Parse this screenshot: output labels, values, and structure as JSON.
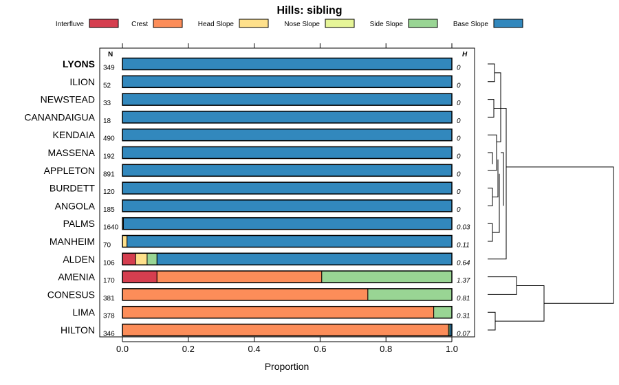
{
  "chart_data": {
    "type": "bar",
    "orientation": "horizontal",
    "stacked": true,
    "title": "Hills: sibling",
    "xlabel": "Proportion",
    "ylabel": "",
    "xlim": [
      0,
      1
    ],
    "xticks": [
      "0.0",
      "0.2",
      "0.4",
      "0.6",
      "0.8",
      "1.0"
    ],
    "xtick_values": [
      0,
      0.2,
      0.4,
      0.6,
      0.8,
      1.0
    ],
    "n_header": "N",
    "h_header": "H",
    "legend_placement": "top",
    "highlighted_category": "LYONS",
    "legend": [
      {
        "name": "Interfluve",
        "color": "#D53E4F"
      },
      {
        "name": "Crest",
        "color": "#FC8D59"
      },
      {
        "name": "Head Slope",
        "color": "#FEE08B"
      },
      {
        "name": "Nose Slope",
        "color": "#E6F598"
      },
      {
        "name": "Side Slope",
        "color": "#99D594"
      },
      {
        "name": "Base Slope",
        "color": "#3288BD"
      }
    ],
    "categories": [
      "LYONS",
      "ILION",
      "NEWSTEAD",
      "CANANDAIGUA",
      "KENDAIA",
      "MASSENA",
      "APPLETON",
      "BURDETT",
      "ANGOLA",
      "PALMS",
      "MANHEIM",
      "ALDEN",
      "AMENIA",
      "CONESUS",
      "LIMA",
      "HILTON"
    ],
    "n": [
      "349",
      "52",
      "33",
      "18",
      "490",
      "192",
      "891",
      "120",
      "185",
      "1640",
      "70",
      "106",
      "170",
      "381",
      "378",
      "346"
    ],
    "h": [
      "0",
      "0",
      "0",
      "0",
      "0",
      "0",
      "0",
      "0",
      "0",
      "0.03",
      "0.11",
      "0.64",
      "1.37",
      "0.81",
      "0.31",
      "0.07"
    ],
    "series": [
      {
        "name": "Interfluve",
        "values": [
          0,
          0,
          0,
          0,
          0,
          0,
          0,
          0,
          0,
          0,
          0,
          0.04,
          0.105,
          0,
          0,
          0
        ]
      },
      {
        "name": "Crest",
        "values": [
          0,
          0,
          0,
          0,
          0,
          0,
          0,
          0,
          0,
          0,
          0,
          0,
          0.5,
          0.745,
          0.945,
          0.99
        ]
      },
      {
        "name": "Head Slope",
        "values": [
          0,
          0,
          0,
          0,
          0,
          0,
          0,
          0,
          0,
          0.003,
          0.014,
          0.035,
          0,
          0,
          0,
          0
        ]
      },
      {
        "name": "Nose Slope",
        "values": [
          0,
          0,
          0,
          0,
          0,
          0,
          0,
          0,
          0,
          0,
          0,
          0,
          0,
          0,
          0,
          0
        ]
      },
      {
        "name": "Side Slope",
        "values": [
          0,
          0,
          0,
          0,
          0,
          0,
          0,
          0,
          0,
          0,
          0,
          0.03,
          0.395,
          0.255,
          0.055,
          0.004
        ]
      },
      {
        "name": "Base Slope",
        "values": [
          1,
          1,
          1,
          1,
          1,
          1,
          1,
          1,
          1,
          0.997,
          0.986,
          0.895,
          0,
          0,
          0,
          0.006
        ]
      }
    ],
    "dendrogram": {
      "type": "hierarchical-clustering",
      "orientation": "right",
      "leaf_order": [
        "LYONS",
        "ILION",
        "NEWSTEAD",
        "CANANDAIGUA",
        "KENDAIA",
        "MASSENA",
        "APPLETON",
        "BURDETT",
        "ANGOLA",
        "PALMS",
        "MANHEIM",
        "ALDEN",
        "AMENIA",
        "CONESUS",
        "LIMA",
        "HILTON"
      ]
    }
  }
}
